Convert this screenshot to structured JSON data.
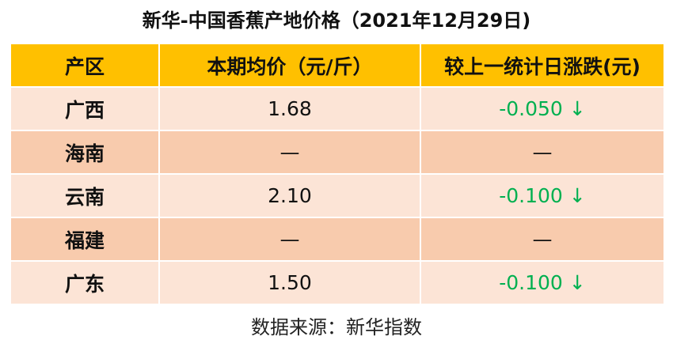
{
  "title": "新华-中国香蕉产地价格（2021年12月29日)",
  "table": {
    "header": [
      "产区",
      "本期均价（元/斤）",
      "较上一统计日涨跌(元)"
    ],
    "rows": [
      [
        "广西",
        "1.68",
        "-0.050 ↓"
      ],
      [
        "海南",
        "—",
        "—"
      ],
      [
        "云南",
        "2.10",
        "-0.100 ↓"
      ],
      [
        "福建",
        "—",
        "—"
      ],
      [
        "广东",
        "1.50",
        "-0.100 ↓"
      ]
    ]
  },
  "source": "数据来源：新华指数"
}
